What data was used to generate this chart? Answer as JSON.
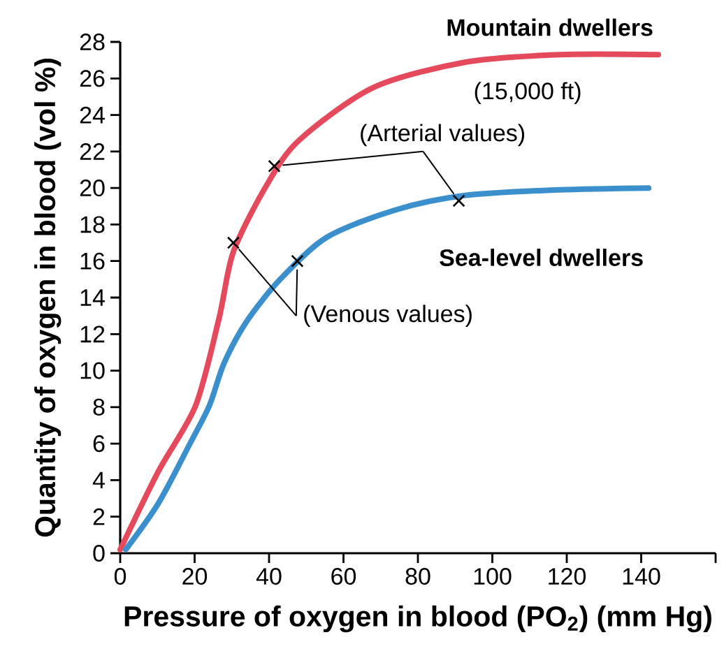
{
  "chart_data": {
    "type": "line",
    "xlabel": "Pressure of oxygen in blood (PO$_{2}$) (mm Hg)",
    "ylabel": "Quantity of oxygen in blood (vol %)",
    "xlim": [
      0,
      160
    ],
    "xticks": [
      0,
      20,
      40,
      60,
      80,
      100,
      120,
      140,
      {
        "value": 160,
        "label": null
      }
    ],
    "ylim": [
      0,
      28
    ],
    "yticks": [
      0,
      2,
      4,
      6,
      8,
      10,
      12,
      14,
      16,
      18,
      20,
      22,
      24,
      26,
      28
    ],
    "grid": false,
    "line_style": "solid",
    "marker": "none",
    "series": [
      {
        "name": "Mountain dwellers",
        "color": "#e54a5c",
        "x": [
          0,
          10.3,
          20.3,
          26.6,
          30.4,
          39.2,
          48,
          68,
          93,
          118,
          144.6
        ],
        "values": [
          0.2,
          4.5,
          8.1,
          12.9,
          16.5,
          20.1,
          22.6,
          25.5,
          26.9,
          27.3,
          27.3
        ]
      },
      {
        "name": "Sea-level dwellers",
        "color": "#3a8fcc",
        "x": [
          1.5,
          10.3,
          19,
          24,
          27.9,
          34,
          43,
          55.5,
          74,
          93,
          118,
          142
        ],
        "values": [
          0.2,
          2.75,
          6.1,
          8.1,
          10.4,
          12.7,
          15,
          17.3,
          18.8,
          19.6,
          19.9,
          20.0
        ]
      },
      {
        "type": "scatter",
        "marker": "cross",
        "color": "#000000",
        "x": [
          41.4,
          91
        ],
        "values": [
          21.2,
          19.3
        ]
      },
      {
        "type": "scatter",
        "marker": "cross",
        "color": "#000000",
        "x": [
          30.4,
          47.6
        ],
        "values": [
          17,
          16
        ]
      }
    ],
    "annotations": [
      "(15,000 ft)",
      {
        "text": "(Arterial values)",
        "x": 41.4,
        "y": 21.2
      },
      {
        "text": "(Venous values)",
        "x": 30.4,
        "y": 17
      }
    ]
  }
}
